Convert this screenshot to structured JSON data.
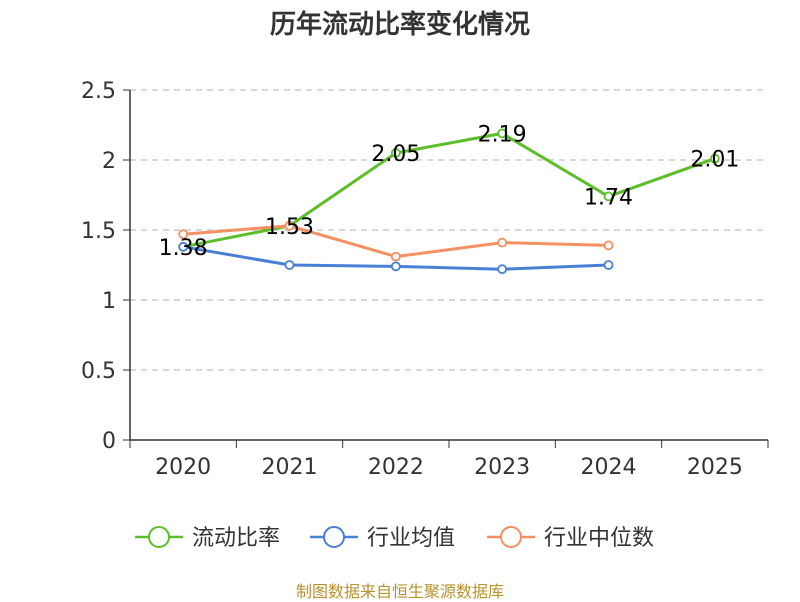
{
  "chart_data": {
    "type": "line",
    "title": "历年流动比率变化情况",
    "categories": [
      "2020",
      "2021",
      "2022",
      "2023",
      "2024",
      "2025"
    ],
    "ylim": [
      0,
      2.5
    ],
    "yticks": [
      "0",
      "0.5",
      "1",
      "1.5",
      "2",
      "2.5"
    ],
    "ytick_values": [
      0,
      0.5,
      1,
      1.5,
      2,
      2.5
    ],
    "grid": true,
    "legend_position": "bottom",
    "series": [
      {
        "name": "流动比率",
        "color": "#5dbe2a",
        "values": [
          1.38,
          1.53,
          2.05,
          2.19,
          1.74,
          2.01
        ],
        "labels": [
          "1.38",
          "1.53",
          "2.05",
          "2.19",
          "1.74",
          "2.01"
        ],
        "show_labels": true
      },
      {
        "name": "行业均值",
        "color": "#4a7fd6",
        "values": [
          1.38,
          1.25,
          1.24,
          1.22,
          1.25,
          null
        ],
        "show_labels": false
      },
      {
        "name": "行业中位数",
        "color": "#f49062",
        "values": [
          1.47,
          1.53,
          1.31,
          1.41,
          1.39,
          null
        ],
        "show_labels": false
      }
    ]
  },
  "source": "制图数据来自恒生聚源数据库"
}
